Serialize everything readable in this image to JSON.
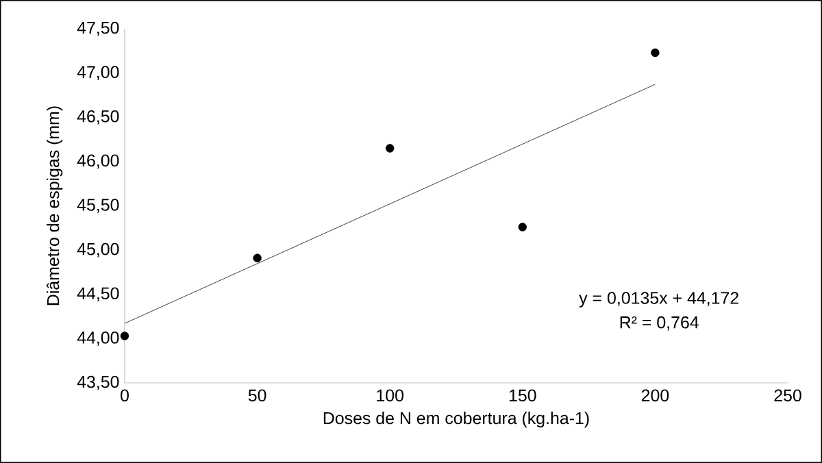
{
  "chart_data": {
    "type": "scatter",
    "xlabel": "Doses de N em cobertura (kg.ha-1)",
    "ylabel": "Diâmetro de espigas (mm)",
    "xlim": [
      0,
      250
    ],
    "xticks": [
      0,
      50,
      100,
      150,
      200,
      250
    ],
    "ylim": [
      43.5,
      47.5
    ],
    "yticks": [
      {
        "value": 43.5,
        "label": "43,50"
      },
      {
        "value": 44,
        "label": "44,00"
      },
      {
        "value": 44.5,
        "label": "44,50"
      },
      {
        "value": 45,
        "label": "45,00"
      },
      {
        "value": 45.5,
        "label": "45,50"
      },
      {
        "value": 46,
        "label": "46,00"
      },
      {
        "value": 46.5,
        "label": "46,50"
      },
      {
        "value": 47,
        "label": "47,00"
      },
      {
        "value": 47.5,
        "label": "47,50"
      }
    ],
    "series": [
      {
        "color": "#000000",
        "marker": "circle",
        "x": [
          0,
          50,
          100,
          150,
          200
        ],
        "values": [
          44.03,
          44.91,
          46.15,
          45.26,
          47.23
        ]
      },
      {
        "type": "line",
        "color": "#404040",
        "marker": "none",
        "x": [
          0,
          200
        ],
        "values": [
          44.172,
          46.872
        ]
      }
    ],
    "annotations": [
      "y = 0,0135x + 44,172",
      "R² = 0,764"
    ]
  }
}
